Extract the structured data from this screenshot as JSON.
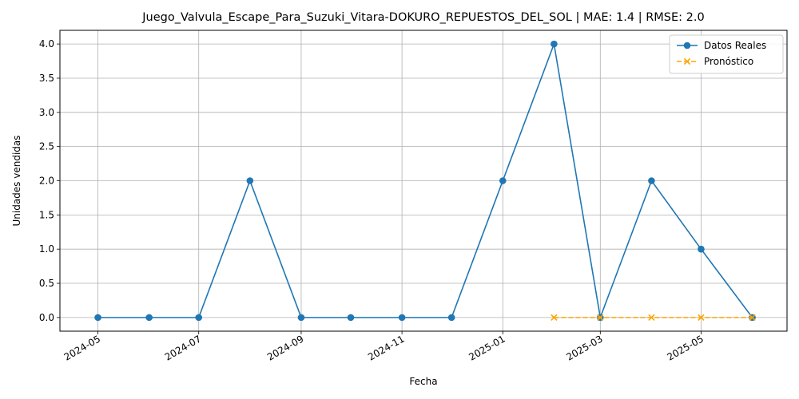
{
  "chart_data": {
    "type": "line",
    "title": "Juego_Valvula_Escape_Para_Suzuki_Vitara-DOKURO_REPUESTOS_DEL_SOL | MAE: 1.4 | RMSE: 2.0",
    "xlabel": "Fecha",
    "ylabel": "Unidades vendidas",
    "xlim": [
      "2024-04-08",
      "2025-06-22"
    ],
    "ylim": [
      -0.2,
      4.2
    ],
    "grid": true,
    "legend_position": "top-right",
    "x_ticks": [
      "2024-05",
      "2024-07",
      "2024-09",
      "2024-11",
      "2025-01",
      "2025-03",
      "2025-05"
    ],
    "y_ticks": [
      "0.0",
      "0.5",
      "1.0",
      "1.5",
      "2.0",
      "2.5",
      "3.0",
      "3.5",
      "4.0"
    ],
    "series": [
      {
        "name": "Datos Reales",
        "color": "#1f77b4",
        "style": "solid",
        "marker": "circle",
        "x": [
          "2024-05-01",
          "2024-06-01",
          "2024-07-01",
          "2024-08-01",
          "2024-09-01",
          "2024-10-01",
          "2024-11-01",
          "2024-12-01",
          "2025-01-01",
          "2025-02-01",
          "2025-03-01",
          "2025-04-01",
          "2025-05-01",
          "2025-06-01"
        ],
        "values": [
          0,
          0,
          0,
          2,
          0,
          0,
          0,
          0,
          2,
          4,
          0,
          2,
          1,
          0
        ]
      },
      {
        "name": "Pronóstico",
        "color": "#ffa500",
        "style": "dashed",
        "marker": "x",
        "x": [
          "2025-02-01",
          "2025-03-01",
          "2025-04-01",
          "2025-05-01",
          "2025-06-01"
        ],
        "values": [
          0,
          0,
          0,
          0,
          0
        ]
      }
    ]
  }
}
